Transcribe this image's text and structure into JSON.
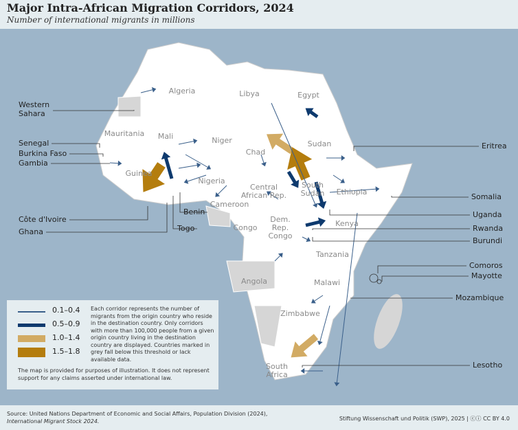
{
  "title": "Major Intra-African Migration Corridors, 2024",
  "subtitle": "Number of international migrants in millions",
  "colors": {
    "ocean": "#9db5c9",
    "land": "#ffffff",
    "no_data": "#d6d6d6",
    "c1": "#3a5f8a",
    "c2": "#0e3a6e",
    "c3": "#d2ab64",
    "c4": "#b47d0e"
  },
  "map_labels": [
    "Algeria",
    "Libya",
    "Egypt",
    "Mauritania",
    "Mali",
    "Niger",
    "Chad",
    "Sudan",
    "Guinea",
    "Nigeria",
    "Central African Rep.",
    "South Sudan",
    "Ethiopia",
    "Cameroon",
    "Congo",
    "Dem. Rep. Congo",
    "Kenya",
    "Tanzania",
    "Angola",
    "Malawi",
    "Zimbabwe",
    "South Africa"
  ],
  "external_labels": [
    "Western Sahara",
    "Senegal",
    "Burkina Faso",
    "Gambia",
    "Côte d'Ivoire",
    "Ghana",
    "Benin",
    "Togo",
    "Eritrea",
    "Somalia",
    "Uganda",
    "Rwanda",
    "Burundi",
    "Comoros",
    "Mayotte",
    "Mozambique",
    "Lesotho"
  ],
  "legend": {
    "items": [
      {
        "range": "0.1–0.4"
      },
      {
        "range": "0.5–0.9"
      },
      {
        "range": "1.0–1.4"
      },
      {
        "range": "1.5–1.8"
      }
    ],
    "description": "Each corridor represents the number of migrants from the origin country who reside in the destination country. Only corridors with more than 100,000 people from a given origin country living in the destination country are displayed. Countries marked in grey fall below this threshold or lack available data.",
    "disclaimer": "The map is provided for purposes of illustration. It does not represent support for any claims asserted under international law."
  },
  "footer": {
    "source": "Source: United Nations Department of Economic and Social Affairs, Population Division (2024),",
    "source_title": "International Migrant Stock 2024.",
    "credit": "Stiftung Wissenschaft und Politik (SWP), 2025 | ⓒⓘ CC BY 4.0"
  }
}
